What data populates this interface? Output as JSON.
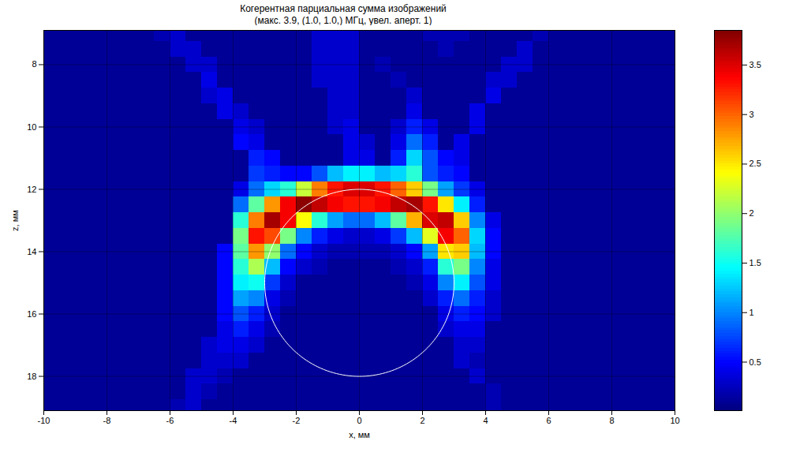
{
  "chart_data": {
    "type": "heatmap",
    "title": "Когерентная парциальная сумма изображений",
    "subtitle": "(макс.  3.9, (1.0, 1.0,) МГц, увел. аперт. 1)",
    "x_label": "x, мм",
    "y_label": "z, мм",
    "xlim": [
      -10,
      10
    ],
    "ylim": [
      6.9,
      19.1
    ],
    "xticks": [
      -10,
      -8,
      -6,
      -4,
      -2,
      0,
      2,
      4,
      6,
      8,
      10
    ],
    "yticks": [
      8,
      10,
      12,
      14,
      16,
      18
    ],
    "grid": true,
    "x": [
      -9.75,
      -9.25,
      -8.75,
      -8.25,
      -7.75,
      -7.25,
      -6.75,
      -6.25,
      -5.75,
      -5.25,
      -4.75,
      -4.25,
      -3.75,
      -3.25,
      -2.75,
      -2.25,
      -1.75,
      -1.25,
      -0.75,
      -0.25,
      0.25,
      0.75,
      1.25,
      1.75,
      2.25,
      2.75,
      3.25,
      3.75,
      4.25,
      4.75,
      5.25,
      5.75,
      6.25,
      6.75,
      7.25,
      7.75,
      8.25,
      8.75,
      9.25,
      9.75
    ],
    "y": [
      7,
      7.5,
      8,
      8.5,
      9,
      9.5,
      10,
      10.5,
      11,
      11.5,
      12,
      12.5,
      13,
      13.5,
      14,
      14.5,
      15,
      15.5,
      16,
      16.5,
      17,
      17.5,
      18,
      18.5,
      19
    ],
    "cells": [
      [
        0.1,
        0.1,
        0.1,
        0.1,
        0.1,
        0.1,
        0.1,
        0.2,
        0.3,
        0.1,
        0.1,
        0.1,
        0.1,
        0.1,
        0.1,
        0.1,
        0.1,
        0.3,
        0.3,
        0.3,
        0.1,
        0.1,
        0.1,
        0.1,
        0.2,
        0.2,
        0.2,
        0.1,
        0.1,
        0.1,
        0.1,
        0.2,
        0.1,
        0.1,
        0.1,
        0.1,
        0.1,
        0.1,
        0.1,
        0.1
      ],
      [
        0.1,
        0.1,
        0.1,
        0.1,
        0.1,
        0.1,
        0.1,
        0.1,
        0.3,
        0.3,
        0.1,
        0.1,
        0.1,
        0.1,
        0.1,
        0.1,
        0.1,
        0.3,
        0.3,
        0.3,
        0.1,
        0.1,
        0.1,
        0.1,
        0.1,
        0.2,
        0.1,
        0.1,
        0.1,
        0.1,
        0.3,
        0.1,
        0.1,
        0.1,
        0.1,
        0.1,
        0.1,
        0.1,
        0.1,
        0.1
      ],
      [
        0.1,
        0.1,
        0.1,
        0.1,
        0.1,
        0.1,
        0.1,
        0.1,
        0.1,
        0.3,
        0.3,
        0.1,
        0.1,
        0.1,
        0.1,
        0.1,
        0.1,
        0.3,
        0.3,
        0.3,
        0.1,
        0.2,
        0.1,
        0.1,
        0.1,
        0.1,
        0.1,
        0.1,
        0.1,
        0.3,
        0.3,
        0.1,
        0.1,
        0.1,
        0.1,
        0.1,
        0.1,
        0.1,
        0.1,
        0.1
      ],
      [
        0.1,
        0.1,
        0.1,
        0.1,
        0.1,
        0.1,
        0.1,
        0.1,
        0.1,
        0.1,
        0.4,
        0.1,
        0.1,
        0.1,
        0.1,
        0.1,
        0.1,
        0.3,
        0.3,
        0.3,
        0.1,
        0.1,
        0.2,
        0.1,
        0.1,
        0.1,
        0.1,
        0.1,
        0.3,
        0.3,
        0.1,
        0.1,
        0.1,
        0.1,
        0.1,
        0.1,
        0.1,
        0.1,
        0.1,
        0.1
      ],
      [
        0.1,
        0.1,
        0.1,
        0.1,
        0.1,
        0.1,
        0.1,
        0.1,
        0.1,
        0.1,
        0.3,
        0.4,
        0.1,
        0.1,
        0.1,
        0.1,
        0.1,
        0.1,
        0.3,
        0.3,
        0.1,
        0.1,
        0.1,
        0.3,
        0.1,
        0.1,
        0.1,
        0.1,
        0.4,
        0.1,
        0.1,
        0.1,
        0.1,
        0.1,
        0.1,
        0.1,
        0.1,
        0.1,
        0.1,
        0.1
      ],
      [
        0.1,
        0.1,
        0.1,
        0.1,
        0.1,
        0.1,
        0.1,
        0.1,
        0.1,
        0.1,
        0.1,
        0.4,
        0.3,
        0.1,
        0.1,
        0.1,
        0.1,
        0.1,
        0.3,
        0.3,
        0.1,
        0.1,
        0.1,
        0.4,
        0.1,
        0.1,
        0.1,
        0.4,
        0.1,
        0.1,
        0.1,
        0.1,
        0.1,
        0.1,
        0.1,
        0.1,
        0.1,
        0.1,
        0.1,
        0.1
      ],
      [
        0.1,
        0.1,
        0.1,
        0.1,
        0.1,
        0.1,
        0.1,
        0.1,
        0.1,
        0.1,
        0.1,
        0.1,
        0.4,
        0.3,
        0.1,
        0.1,
        0.1,
        0.1,
        0.3,
        0.4,
        0.1,
        0.1,
        0.3,
        0.6,
        0.4,
        0.1,
        0.1,
        0.4,
        0.1,
        0.1,
        0.1,
        0.1,
        0.1,
        0.1,
        0.1,
        0.1,
        0.1,
        0.1,
        0.1,
        0.1
      ],
      [
        0.1,
        0.1,
        0.1,
        0.1,
        0.1,
        0.1,
        0.1,
        0.1,
        0.1,
        0.1,
        0.1,
        0.1,
        0.5,
        0.4,
        0.1,
        0.1,
        0.1,
        0.1,
        0.1,
        0.4,
        0.3,
        0.1,
        0.4,
        0.9,
        0.6,
        0.1,
        0.4,
        0.1,
        0.1,
        0.1,
        0.1,
        0.1,
        0.1,
        0.1,
        0.1,
        0.1,
        0.1,
        0.1,
        0.1,
        0.1
      ],
      [
        0.1,
        0.1,
        0.1,
        0.1,
        0.1,
        0.1,
        0.1,
        0.1,
        0.1,
        0.1,
        0.1,
        0.1,
        0.1,
        0.6,
        0.5,
        0.1,
        0.1,
        0.1,
        0.1,
        0.4,
        0.4,
        0.1,
        0.6,
        1.3,
        0.8,
        0.5,
        0.4,
        0.1,
        0.1,
        0.1,
        0.1,
        0.1,
        0.1,
        0.1,
        0.1,
        0.1,
        0.1,
        0.1,
        0.1,
        0.1
      ],
      [
        0.1,
        0.1,
        0.1,
        0.1,
        0.1,
        0.1,
        0.1,
        0.1,
        0.1,
        0.1,
        0.1,
        0.1,
        0.1,
        0.7,
        0.6,
        0.5,
        0.5,
        0.8,
        1.2,
        1.4,
        1.4,
        1.2,
        1.3,
        1.6,
        0.8,
        0.6,
        0.5,
        0.1,
        0.1,
        0.1,
        0.1,
        0.1,
        0.1,
        0.1,
        0.1,
        0.1,
        0.1,
        0.1,
        0.1,
        0.1
      ],
      [
        0.1,
        0.1,
        0.1,
        0.1,
        0.1,
        0.1,
        0.1,
        0.1,
        0.1,
        0.1,
        0.1,
        0.1,
        0.4,
        0.9,
        1.3,
        1.6,
        2.2,
        2.9,
        3.3,
        3.5,
        3.5,
        3.3,
        3.0,
        2.6,
        1.9,
        1.1,
        0.7,
        0.4,
        0.1,
        0.1,
        0.1,
        0.1,
        0.1,
        0.1,
        0.1,
        0.1,
        0.1,
        0.1,
        0.1,
        0.1
      ],
      [
        0.1,
        0.1,
        0.1,
        0.1,
        0.1,
        0.1,
        0.1,
        0.1,
        0.1,
        0.1,
        0.1,
        0.1,
        0.9,
        1.8,
        2.8,
        3.4,
        3.8,
        3.6,
        3.4,
        3.3,
        3.3,
        3.4,
        3.6,
        3.7,
        3.3,
        2.5,
        1.4,
        0.6,
        0.1,
        0.1,
        0.1,
        0.1,
        0.1,
        0.1,
        0.1,
        0.1,
        0.1,
        0.1,
        0.1,
        0.1
      ],
      [
        0.1,
        0.1,
        0.1,
        0.1,
        0.1,
        0.1,
        0.1,
        0.1,
        0.1,
        0.1,
        0.1,
        0.1,
        1.6,
        2.9,
        3.7,
        3.4,
        2.4,
        1.6,
        1.1,
        0.9,
        0.9,
        1.2,
        1.8,
        2.7,
        3.5,
        3.6,
        2.6,
        1.0,
        0.4,
        0.1,
        0.1,
        0.1,
        0.1,
        0.1,
        0.1,
        0.1,
        0.1,
        0.1,
        0.1,
        0.1
      ],
      [
        0.1,
        0.1,
        0.1,
        0.1,
        0.1,
        0.1,
        0.1,
        0.1,
        0.1,
        0.1,
        0.1,
        0.1,
        1.9,
        3.3,
        3.1,
        1.9,
        1.0,
        0.6,
        0.4,
        0.3,
        0.3,
        0.4,
        0.7,
        1.2,
        2.3,
        3.4,
        3.0,
        1.3,
        0.5,
        0.1,
        0.1,
        0.1,
        0.1,
        0.1,
        0.1,
        0.1,
        0.1,
        0.1,
        0.1,
        0.1
      ],
      [
        0.1,
        0.1,
        0.1,
        0.1,
        0.1,
        0.1,
        0.1,
        0.1,
        0.1,
        0.1,
        0.1,
        0.5,
        1.8,
        2.8,
        2.0,
        0.9,
        0.5,
        0.3,
        0.2,
        0.2,
        0.2,
        0.2,
        0.3,
        0.5,
        1.1,
        2.5,
        2.6,
        1.2,
        0.5,
        0.1,
        0.1,
        0.1,
        0.1,
        0.1,
        0.1,
        0.1,
        0.1,
        0.1,
        0.1,
        0.1
      ],
      [
        0.1,
        0.1,
        0.1,
        0.1,
        0.1,
        0.1,
        0.1,
        0.1,
        0.1,
        0.1,
        0.1,
        0.5,
        1.6,
        2.1,
        1.2,
        0.5,
        0.3,
        0.2,
        0.1,
        0.1,
        0.1,
        0.1,
        0.2,
        0.3,
        0.6,
        1.6,
        1.9,
        1.0,
        0.4,
        0.1,
        0.1,
        0.1,
        0.1,
        0.1,
        0.1,
        0.1,
        0.1,
        0.1,
        0.1,
        0.1
      ],
      [
        0.1,
        0.1,
        0.1,
        0.1,
        0.1,
        0.1,
        0.1,
        0.1,
        0.1,
        0.1,
        0.1,
        0.5,
        1.4,
        1.5,
        0.7,
        0.3,
        0.1,
        0.1,
        0.1,
        0.1,
        0.1,
        0.1,
        0.1,
        0.2,
        0.4,
        1.0,
        1.4,
        0.8,
        0.4,
        0.1,
        0.1,
        0.1,
        0.1,
        0.1,
        0.1,
        0.1,
        0.1,
        0.1,
        0.1,
        0.1
      ],
      [
        0.1,
        0.1,
        0.1,
        0.1,
        0.1,
        0.1,
        0.1,
        0.1,
        0.1,
        0.1,
        0.1,
        0.5,
        1.1,
        1.0,
        0.4,
        0.2,
        0.1,
        0.1,
        0.1,
        0.1,
        0.1,
        0.1,
        0.1,
        0.1,
        0.3,
        0.6,
        0.9,
        0.6,
        0.3,
        0.1,
        0.1,
        0.1,
        0.1,
        0.1,
        0.1,
        0.1,
        0.1,
        0.1,
        0.1,
        0.1
      ],
      [
        0.1,
        0.1,
        0.1,
        0.1,
        0.1,
        0.1,
        0.1,
        0.1,
        0.1,
        0.1,
        0.1,
        0.5,
        0.8,
        0.6,
        0.3,
        0.1,
        0.1,
        0.1,
        0.1,
        0.1,
        0.1,
        0.1,
        0.1,
        0.1,
        0.1,
        0.4,
        0.6,
        0.5,
        0.3,
        0.1,
        0.1,
        0.1,
        0.1,
        0.1,
        0.1,
        0.1,
        0.1,
        0.1,
        0.1,
        0.1
      ],
      [
        0.1,
        0.1,
        0.1,
        0.1,
        0.1,
        0.1,
        0.1,
        0.1,
        0.1,
        0.1,
        0.1,
        0.4,
        0.6,
        0.4,
        0.2,
        0.1,
        0.1,
        0.1,
        0.1,
        0.1,
        0.1,
        0.1,
        0.1,
        0.1,
        0.1,
        0.3,
        0.4,
        0.4,
        0.1,
        0.1,
        0.1,
        0.1,
        0.1,
        0.1,
        0.1,
        0.1,
        0.1,
        0.1,
        0.1,
        0.1
      ],
      [
        0.1,
        0.1,
        0.1,
        0.1,
        0.1,
        0.1,
        0.1,
        0.1,
        0.1,
        0.1,
        0.3,
        0.4,
        0.4,
        0.3,
        0.1,
        0.1,
        0.1,
        0.1,
        0.1,
        0.1,
        0.1,
        0.1,
        0.1,
        0.1,
        0.1,
        0.1,
        0.3,
        0.3,
        0.1,
        0.1,
        0.1,
        0.1,
        0.1,
        0.1,
        0.1,
        0.1,
        0.1,
        0.1,
        0.1,
        0.1
      ],
      [
        0.1,
        0.1,
        0.1,
        0.1,
        0.1,
        0.1,
        0.1,
        0.1,
        0.1,
        0.1,
        0.3,
        0.3,
        0.3,
        0.1,
        0.1,
        0.1,
        0.1,
        0.1,
        0.1,
        0.1,
        0.1,
        0.1,
        0.1,
        0.1,
        0.1,
        0.1,
        0.3,
        0.2,
        0.1,
        0.1,
        0.1,
        0.1,
        0.1,
        0.1,
        0.1,
        0.1,
        0.1,
        0.1,
        0.1,
        0.1
      ],
      [
        0.1,
        0.1,
        0.1,
        0.1,
        0.1,
        0.1,
        0.1,
        0.1,
        0.1,
        0.3,
        0.3,
        0.2,
        0.1,
        0.1,
        0.1,
        0.1,
        0.1,
        0.1,
        0.1,
        0.1,
        0.1,
        0.1,
        0.1,
        0.1,
        0.1,
        0.1,
        0.1,
        0.3,
        0.1,
        0.1,
        0.1,
        0.1,
        0.1,
        0.1,
        0.1,
        0.1,
        0.1,
        0.1,
        0.1,
        0.1
      ],
      [
        0.1,
        0.1,
        0.1,
        0.1,
        0.1,
        0.1,
        0.1,
        0.1,
        0.1,
        0.3,
        0.2,
        0.1,
        0.1,
        0.1,
        0.1,
        0.1,
        0.1,
        0.1,
        0.1,
        0.1,
        0.1,
        0.1,
        0.1,
        0.1,
        0.1,
        0.1,
        0.1,
        0.1,
        0.2,
        0.1,
        0.1,
        0.1,
        0.1,
        0.1,
        0.1,
        0.1,
        0.1,
        0.1,
        0.1,
        0.1
      ],
      [
        0.1,
        0.1,
        0.1,
        0.1,
        0.1,
        0.1,
        0.1,
        0.1,
        0.2,
        0.3,
        0.1,
        0.1,
        0.1,
        0.1,
        0.1,
        0.1,
        0.1,
        0.1,
        0.1,
        0.1,
        0.1,
        0.1,
        0.1,
        0.1,
        0.1,
        0.1,
        0.1,
        0.1,
        0.2,
        0.1,
        0.1,
        0.1,
        0.1,
        0.1,
        0.1,
        0.1,
        0.1,
        0.1,
        0.1,
        0.1
      ]
    ],
    "colorbar": {
      "lim": [
        0.01,
        3.85
      ],
      "ticks": [
        0.5,
        1,
        1.5,
        2,
        2.5,
        3,
        3.5
      ]
    },
    "circle": {
      "x": 0,
      "y": 15,
      "r": 3,
      "color": "#ffffff"
    }
  }
}
